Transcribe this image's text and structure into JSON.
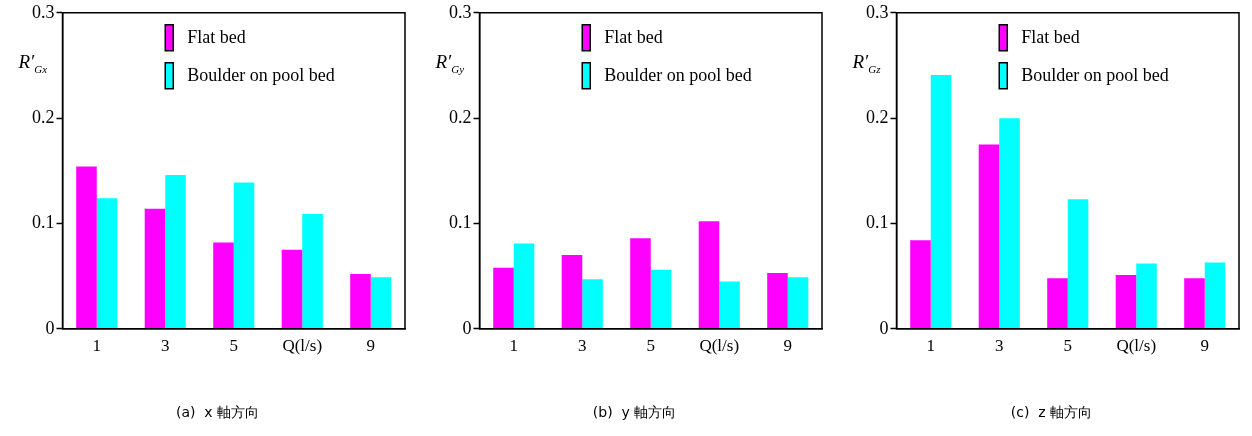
{
  "chart_data": [
    {
      "type": "bar",
      "title": "(a)  x 軸方向",
      "ylabel": "R′$_{Gx}$",
      "categories": [
        "1",
        "3",
        "5",
        "Q(l/s)",
        "9"
      ],
      "ylim": [
        0,
        0.3
      ],
      "yticks": [
        0,
        0.1,
        0.2,
        0.3
      ],
      "grid": false,
      "legend": "top",
      "series": [
        {
          "name": "Flat bed",
          "color": "#ff00ff",
          "values": [
            0.154,
            0.114,
            0.082,
            0.075,
            0.052
          ]
        },
        {
          "name": "Boulder on pool bed",
          "color": "#00ffff",
          "values": [
            0.124,
            0.146,
            0.139,
            0.109,
            0.049
          ]
        }
      ]
    },
    {
      "type": "bar",
      "title": "(b)  y 軸方向",
      "ylabel": "R′$_{Gy}$",
      "categories": [
        "1",
        "3",
        "5",
        "Q(l/s)",
        "9"
      ],
      "ylim": [
        0,
        0.3
      ],
      "yticks": [
        0,
        0.1,
        0.2,
        0.3
      ],
      "grid": false,
      "legend": "top",
      "series": [
        {
          "name": "Flat bed",
          "color": "#ff00ff",
          "values": [
            0.058,
            0.07,
            0.086,
            0.102,
            0.053
          ]
        },
        {
          "name": "Boulder on pool bed",
          "color": "#00ffff",
          "values": [
            0.081,
            0.047,
            0.056,
            0.045,
            0.049
          ]
        }
      ]
    },
    {
      "type": "bar",
      "title": "(c)  z 軸方向",
      "ylabel": "R′$_{Gz}$",
      "categories": [
        "1",
        "3",
        "5",
        "Q(l/s)",
        "9"
      ],
      "ylim": [
        0,
        0.3
      ],
      "yticks": [
        0,
        0.1,
        0.2,
        0.3
      ],
      "grid": false,
      "legend": "top",
      "series": [
        {
          "name": "Flat bed",
          "color": "#ff00ff",
          "values": [
            0.084,
            0.175,
            0.048,
            0.051,
            0.048
          ]
        },
        {
          "name": "Boulder on pool bed",
          "color": "#00ffff",
          "values": [
            0.241,
            0.2,
            0.123,
            0.062,
            0.063
          ]
        }
      ]
    }
  ]
}
